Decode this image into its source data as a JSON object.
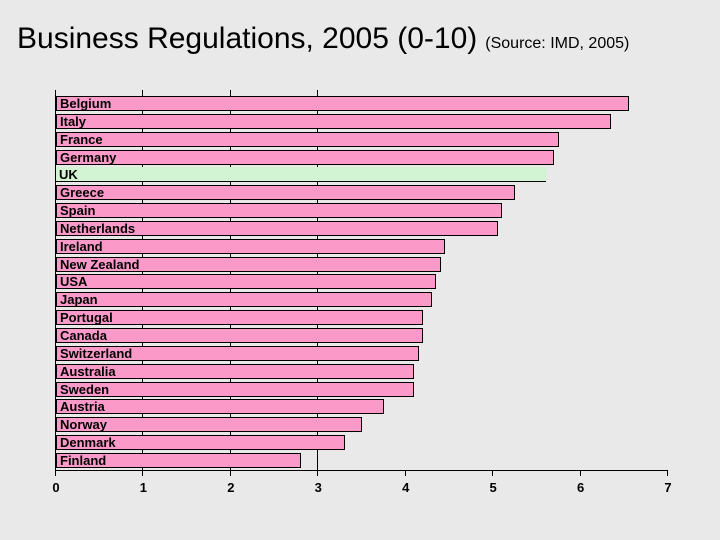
{
  "title": {
    "main": "Business Regulations, 2005 (0-10)",
    "source": "(Source: IMD, 2005)"
  },
  "chart_data": {
    "type": "bar",
    "orientation": "horizontal",
    "title": "Business Regulations, 2005 (0-10)",
    "source_note": "(Source: IMD, 2005)",
    "categories": [
      "Belgium",
      "Italy",
      "France",
      "Germany",
      "UK",
      "Greece",
      "Spain",
      "Netherlands",
      "Ireland",
      "New Zealand",
      "USA",
      "Japan",
      "Portugal",
      "Canada",
      "Switzerland",
      "Australia",
      "Sweden",
      "Austria",
      "Norway",
      "Denmark",
      "Finland"
    ],
    "values": [
      6.55,
      6.35,
      5.75,
      5.7,
      5.6,
      5.25,
      5.1,
      5.05,
      4.45,
      4.4,
      4.35,
      4.3,
      4.2,
      4.2,
      4.15,
      4.1,
      4.1,
      3.75,
      3.5,
      3.3,
      2.8
    ],
    "highlighted_category": "UK",
    "xlim": [
      0,
      7
    ],
    "x_ticks": [
      0,
      1,
      2,
      3,
      4,
      5,
      6,
      7
    ],
    "gridlines_at": [
      1,
      2,
      3
    ],
    "bar_color": "#fb9ac9",
    "highlight_color": "#d2f4d2",
    "axis_color": "#000000",
    "background_color": "#e9e9e9",
    "legend": "none",
    "value_labels": "none"
  }
}
